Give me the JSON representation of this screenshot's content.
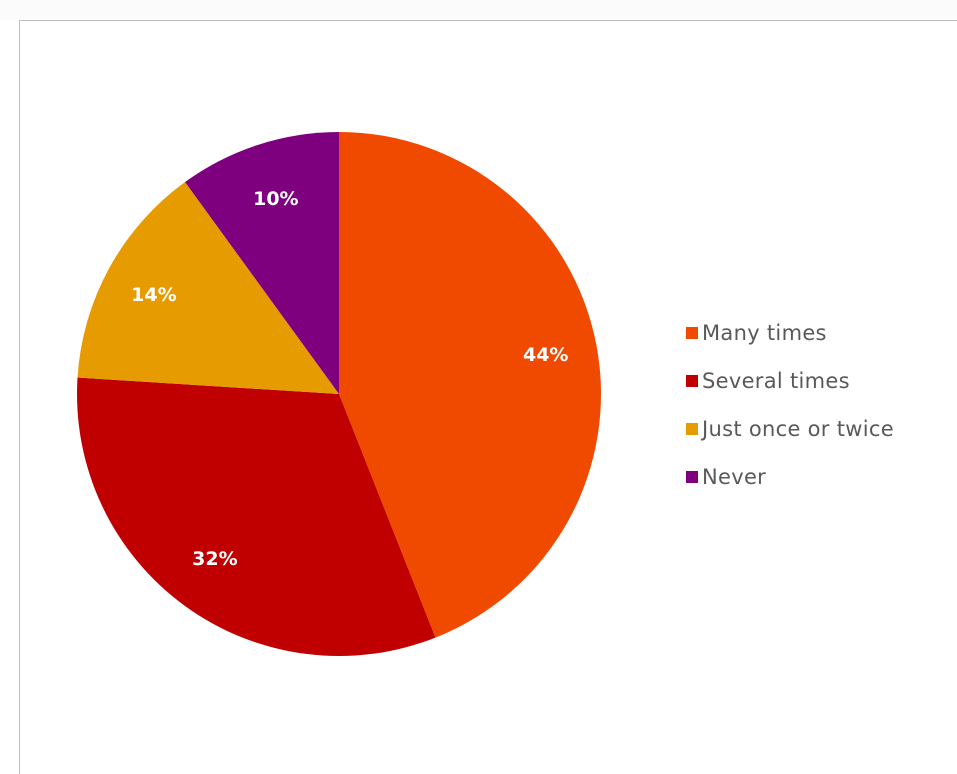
{
  "chart_data": {
    "type": "pie",
    "categories": [
      "Many times",
      "Several times",
      "Just once or twice",
      "Never"
    ],
    "values": [
      44,
      32,
      14,
      10
    ],
    "data_labels": [
      "44%",
      "32%",
      "14%",
      "10%"
    ],
    "colors": [
      "#f04a00",
      "#c00000",
      "#e69c00",
      "#7f007f"
    ],
    "legend_position": "right",
    "start_angle": "12 o'clock, clockwise"
  }
}
